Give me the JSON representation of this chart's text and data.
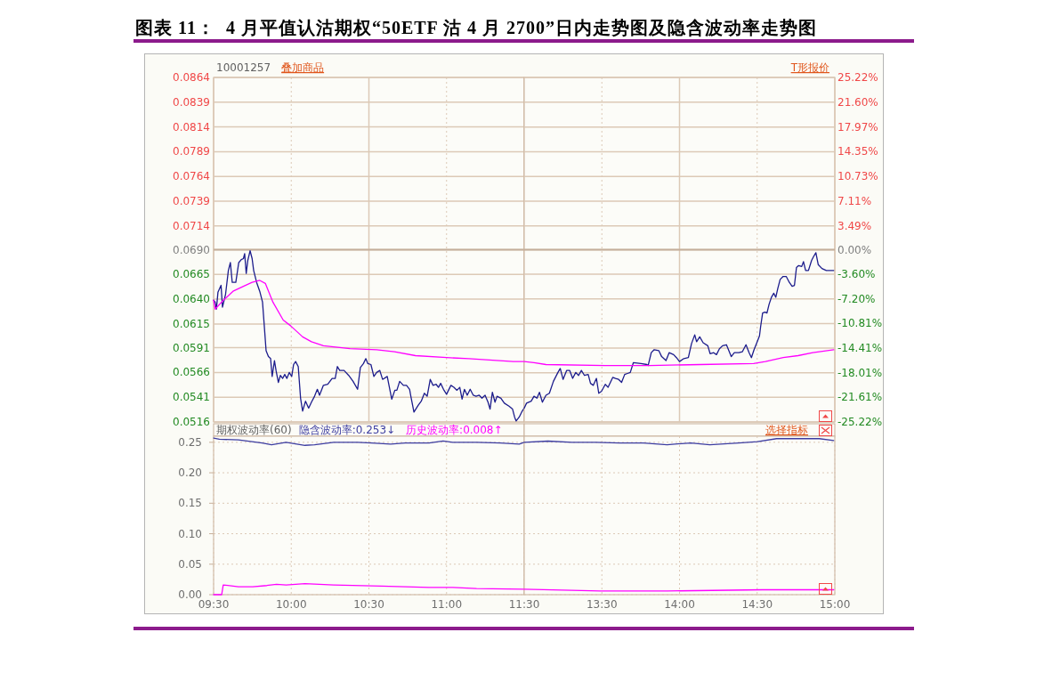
{
  "chart_data": [
    {
      "type": "line",
      "title": "图表 11：  4 月平值认沽期权“50ETF 沽 4 月 2700”日内走势图及隐含波动率走势图",
      "annotations": [
        "10001257",
        "叠加商品"
      ],
      "xlim": [
        9.5,
        11.5
      ],
      "xticks": [
        9.5,
        10,
        10.5,
        11,
        11.5
      ],
      "ylim": [
        0.0516,
        0.0864
      ],
      "yticks": [
        {
          "value": 0.0864,
          "label": "0.0864"
        },
        {
          "value": 0.0839,
          "label": "0.0839"
        },
        {
          "value": 0.0814,
          "label": "0.0814"
        },
        {
          "value": 0.0789,
          "label": "0.0789"
        },
        {
          "value": 0.0764,
          "label": "0.0764"
        },
        {
          "value": 0.0739,
          "label": "0.0739"
        },
        {
          "value": 0.0714,
          "label": "0.0714"
        },
        {
          "value": 0.069,
          "label": "0.0690"
        },
        {
          "value": 0.0665,
          "label": "0.0665"
        },
        {
          "value": 0.064,
          "label": "0.0640"
        },
        {
          "value": 0.0615,
          "label": "0.0615"
        },
        {
          "value": 0.0591,
          "label": "0.0591"
        },
        {
          "value": 0.0566,
          "label": "0.0566"
        },
        {
          "value": 0.0541,
          "label": "0.0541"
        },
        {
          "value": 0.0516,
          "label": "0.0516"
        }
      ],
      "tick_labels": "y",
      "grid": true,
      "ref_lines": [
        {
          "axis": "y",
          "value": 0.069,
          "color": "#c4ae9a"
        }
      ],
      "series": [
        {
          "color": "#1c1c8c",
          "x": [
            9.5,
            9.51,
            9.518,
            9.528,
            9.548,
            9.557,
            9.577,
            9.595,
            9.608,
            9.62,
            9.643,
            9.662,
            9.678,
            9.692,
            9.7,
            9.71,
            9.72,
            9.735,
            9.748,
            9.758,
            9.777,
            9.797,
            9.815,
            9.825,
            9.838,
            9.853,
            9.867,
            9.877,
            9.892,
            9.902,
            9.917,
            9.93,
            9.945,
            9.958,
            9.972,
            9.987,
            10.003,
            10.015,
            10.028,
            10.045,
            10.06,
            10.073,
            10.092,
            10.112,
            10.13,
            10.15,
            10.168,
            10.182,
            10.207,
            10.235,
            10.263,
            10.283,
            10.297,
            10.312,
            10.34,
            10.37,
            10.398,
            10.427,
            10.445,
            10.465,
            10.48,
            10.493,
            10.513,
            10.532,
            10.55,
            10.57,
            10.588,
            10.618,
            10.647,
            10.667,
            10.68,
            10.698,
            10.722,
            10.742,
            10.762,
            10.77,
            10.79,
            10.818,
            10.837,
            10.857,
            10.875,
            10.895,
            10.913,
            10.933,
            10.948,
            10.962,
            10.98,
            11.0,
            11.028,
            11.047,
            11.067,
            11.085,
            11.1,
            11.115,
            11.133,
            11.152,
            11.172,
            11.19,
            11.21,
            11.228,
            11.248,
            11.267,
            11.28,
            11.295,
            11.312,
            11.325,
            11.35,
            11.372,
            11.402,
            11.425,
            11.438,
            11.448,
            11.468,
            11.487,
            11.5
          ],
          "values": [
            0.0639,
            0.0637,
            0.063,
            0.0647,
            0.0654,
            0.0632,
            0.0645,
            0.0669,
            0.0677,
            0.0657,
            0.0657,
            0.0677,
            0.068,
            0.0681,
            0.0686,
            0.0666,
            0.0679,
            0.0689,
            0.0681,
            0.0669,
            0.0657,
            0.0648,
            0.0637,
            0.0616,
            0.0588,
            0.0582,
            0.058,
            0.0562,
            0.0578,
            0.0568,
            0.0556,
            0.0563,
            0.056,
            0.0564,
            0.056,
            0.0566,
            0.0562,
            0.0574,
            0.0577,
            0.0572,
            0.054,
            0.0527,
            0.0537,
            0.053,
            0.0536,
            0.0542,
            0.0549,
            0.0543,
            0.0553,
            0.0554,
            0.056,
            0.056,
            0.0572,
            0.0568,
            0.0568,
            0.0563,
            0.0557,
            0.0549,
            0.0571,
            0.0575,
            0.058,
            0.0575,
            0.0574,
            0.0562,
            0.0566,
            0.0568,
            0.0559,
            0.0562,
            0.0539,
            0.0548,
            0.0548,
            0.0557,
            0.0553,
            0.0553,
            0.0549,
            0.0542,
            0.0526,
            0.0533,
            0.0537,
            0.0545,
            0.0542,
            0.0559,
            0.0553,
            0.0554,
            0.0551,
            0.0555,
            0.0549,
            0.0544,
            0.0553,
            0.0551,
            0.0548,
            0.0551,
            0.0539,
            0.0549,
            0.0543,
            0.0549,
            0.0543,
            0.0542,
            0.0543,
            0.054,
            0.0543,
            0.0536,
            0.0529,
            0.0546,
            0.0536,
            0.0542,
            0.054,
            0.0535,
            0.0532,
            0.0529,
            0.0521,
            0.0517,
            0.0521,
            0.0527,
            0.053
          ]
        },
        {
          "color": "#ff00ff",
          "x": [
            9.5,
            9.51,
            9.557,
            9.625,
            9.692,
            9.748,
            9.797,
            9.833,
            9.882,
            9.948,
            9.997,
            10.073,
            10.13,
            10.207,
            10.378,
            10.55,
            10.665,
            10.8,
            11.0,
            11.143,
            11.43,
            11.5
          ],
          "values": [
            0.0639,
            0.063,
            0.0638,
            0.0648,
            0.0653,
            0.0657,
            0.0659,
            0.0656,
            0.0637,
            0.0619,
            0.0613,
            0.0602,
            0.0597,
            0.0593,
            0.059,
            0.0589,
            0.0587,
            0.0583,
            0.0581,
            0.058,
            0.0577,
            0.0577
          ]
        }
      ]
    },
    {
      "type": "line",
      "annotations": [
        "T形报价"
      ],
      "xlim": [
        13,
        15
      ],
      "xticks": [
        13.5,
        14,
        14.5,
        15
      ],
      "ylim": [
        0.0516,
        0.0864
      ],
      "y2lim": [
        -25.22,
        25.22
      ],
      "y2ticks": [
        {
          "value": 25.22,
          "label": "25.22%"
        },
        {
          "value": 21.6,
          "label": "21.60%"
        },
        {
          "value": 17.97,
          "label": "17.97%"
        },
        {
          "value": 14.35,
          "label": "14.35%"
        },
        {
          "value": 10.73,
          "label": "10.73%"
        },
        {
          "value": 7.11,
          "label": "7.11%"
        },
        {
          "value": 3.49,
          "label": "3.49%"
        },
        {
          "value": 0,
          "label": "0.00%"
        },
        {
          "value": -3.6,
          "label": "-3.60%"
        },
        {
          "value": -7.2,
          "label": "-7.20%"
        },
        {
          "value": -10.81,
          "label": "-10.81%"
        },
        {
          "value": -14.41,
          "label": "-14.41%"
        },
        {
          "value": -18.01,
          "label": "-18.01%"
        },
        {
          "value": -21.61,
          "label": "-21.61%"
        },
        {
          "value": -25.22,
          "label": "-25.22%"
        }
      ],
      "tick_labels": "y",
      "grid": true,
      "ref_lines": [
        {
          "axis": "y",
          "value": 0.069,
          "color": "#c4ae9a"
        }
      ],
      "series": [
        {
          "color": "#1c1c8c",
          "x": [
            13.0,
            13.015,
            13.045,
            13.063,
            13.082,
            13.098,
            13.117,
            13.14,
            13.162,
            13.188,
            13.217,
            13.232,
            13.25,
            13.273,
            13.293,
            13.312,
            13.332,
            13.35,
            13.368,
            13.388,
            13.412,
            13.427,
            13.445,
            13.465,
            13.48,
            13.498,
            13.522,
            13.54,
            13.57,
            13.588,
            13.608,
            13.627,
            13.647,
            13.665,
            13.683,
            13.703,
            13.752,
            13.79,
            13.798,
            13.818,
            13.837,
            13.867,
            13.885,
            13.913,
            13.933,
            13.962,
            13.98,
            14.0,
            14.028,
            14.057,
            14.077,
            14.098,
            14.11,
            14.13,
            14.152,
            14.182,
            14.197,
            14.22,
            14.238,
            14.257,
            14.277,
            14.302,
            14.315,
            14.333,
            14.353,
            14.382,
            14.405,
            14.428,
            14.448,
            14.463,
            14.48,
            14.5,
            14.515,
            14.522,
            14.535,
            14.55,
            14.563,
            14.577,
            14.592,
            14.607,
            14.62,
            14.633,
            14.648,
            14.667,
            14.687,
            14.707,
            14.725,
            14.74,
            14.753,
            14.767,
            14.787,
            14.798,
            14.812,
            14.83,
            14.85,
            14.863,
            14.878,
            14.893,
            14.917,
            14.945,
            14.993
          ],
          "values": [
            0.053,
            0.0535,
            0.0537,
            0.0542,
            0.054,
            0.0546,
            0.0536,
            0.0543,
            0.0545,
            0.0557,
            0.0566,
            0.057,
            0.0559,
            0.0568,
            0.0568,
            0.056,
            0.0566,
            0.0563,
            0.0568,
            0.0563,
            0.0564,
            0.0555,
            0.0553,
            0.056,
            0.0545,
            0.0547,
            0.0554,
            0.0551,
            0.0561,
            0.056,
            0.0559,
            0.0556,
            0.0564,
            0.0565,
            0.0566,
            0.0576,
            0.0575,
            0.0574,
            0.0573,
            0.0586,
            0.0589,
            0.0588,
            0.0582,
            0.0578,
            0.0586,
            0.0584,
            0.0581,
            0.0577,
            0.058,
            0.0581,
            0.0595,
            0.0604,
            0.0597,
            0.0602,
            0.0596,
            0.0593,
            0.0585,
            0.0586,
            0.0584,
            0.059,
            0.0593,
            0.0594,
            0.0589,
            0.0582,
            0.0586,
            0.0586,
            0.0587,
            0.0594,
            0.0586,
            0.0581,
            0.0589,
            0.0597,
            0.0603,
            0.0612,
            0.0626,
            0.0627,
            0.0626,
            0.0635,
            0.0642,
            0.0646,
            0.0642,
            0.0651,
            0.066,
            0.0663,
            0.0663,
            0.0657,
            0.0653,
            0.0654,
            0.0672,
            0.0674,
            0.0673,
            0.0678,
            0.0669,
            0.0669,
            0.0679,
            0.0683,
            0.0687,
            0.0675,
            0.0671,
            0.0669,
            0.0669
          ]
        },
        {
          "color": "#ff00ff",
          "x": [
            13.0,
            13.063,
            13.14,
            13.522,
            13.808,
            14.133,
            14.477,
            14.553,
            14.668,
            14.763,
            14.858,
            14.993
          ],
          "values": [
            0.0577,
            0.0576,
            0.0574,
            0.0573,
            0.0573,
            0.0574,
            0.0575,
            0.0577,
            0.0581,
            0.0583,
            0.0586,
            0.0589
          ]
        }
      ]
    },
    {
      "type": "line",
      "annotations": [
        "期权波动率(60)"
      ],
      "xlim": [
        9.5,
        11.5
      ],
      "xticks": [
        {
          "value": 9.5,
          "label": "09:30"
        },
        {
          "value": 10,
          "label": "10:00"
        },
        {
          "value": 10.5,
          "label": "10:30"
        },
        {
          "value": 11,
          "label": "11:00"
        },
        {
          "value": 11.5,
          "label": "11:30"
        }
      ],
      "ylim": [
        0,
        0.26
      ],
      "yticks": [
        {
          "value": 0,
          "label": "0.00"
        },
        {
          "value": 0.05,
          "label": "0.05"
        },
        {
          "value": 0.1,
          "label": "0.10"
        },
        {
          "value": 0.15,
          "label": "0.15"
        },
        {
          "value": 0.2,
          "label": "0.20"
        },
        {
          "value": 0.25,
          "label": "0.25"
        }
      ],
      "grid": true,
      "series": [
        {
          "name": "隐含波动率:0.253↓",
          "color": "#3c3ca0",
          "x": [
            9.5,
            9.537,
            9.66,
            9.813,
            9.873,
            9.967,
            10.088,
            10.15,
            10.273,
            10.427,
            10.518,
            10.64,
            10.733,
            10.887,
            10.978,
            11.04,
            11.193,
            11.347,
            11.468,
            11.5
          ],
          "values": [
            0.257,
            0.255,
            0.254,
            0.249,
            0.246,
            0.25,
            0.245,
            0.246,
            0.25,
            0.25,
            0.249,
            0.247,
            0.249,
            0.249,
            0.252,
            0.25,
            0.25,
            0.249,
            0.247,
            0.25
          ]
        },
        {
          "name": "历史波动率:0.008↑",
          "color": "#ff00ff",
          "x": [
            9.5,
            9.552,
            9.562,
            9.66,
            9.752,
            9.843,
            9.905,
            9.967,
            10.088,
            10.273,
            10.58,
            10.887,
            11.04,
            11.193,
            11.5
          ],
          "values": [
            0,
            0,
            0.016,
            0.013,
            0.013,
            0.015,
            0.017,
            0.016,
            0.018,
            0.016,
            0.014,
            0.012,
            0.012,
            0.01,
            0.009
          ]
        }
      ]
    },
    {
      "type": "line",
      "annotations": [
        "选择指标"
      ],
      "xlim": [
        13,
        15
      ],
      "xticks": [
        {
          "value": 13.5,
          "label": "13:30"
        },
        {
          "value": 14,
          "label": "14:00"
        },
        {
          "value": 14.5,
          "label": "14:30"
        },
        {
          "value": 15,
          "label": "15:00"
        }
      ],
      "ylim": [
        0,
        0.26
      ],
      "yticks": [
        0,
        0.05,
        0.1,
        0.15,
        0.2,
        0.25
      ],
      "tick_labels": "x",
      "grid": true,
      "series": [
        {
          "color": "#3c3ca0",
          "x": [
            13.0,
            13.153,
            13.307,
            13.46,
            13.613,
            13.767,
            13.92,
            14.073,
            14.195,
            14.38,
            14.502,
            14.625,
            14.778,
            14.9,
            14.993
          ],
          "values": [
            0.25,
            0.252,
            0.25,
            0.25,
            0.249,
            0.249,
            0.246,
            0.249,
            0.246,
            0.249,
            0.251,
            0.256,
            0.256,
            0.256,
            0.253
          ]
        },
        {
          "color": "#ff00ff",
          "x": [
            13.0,
            13.307,
            13.49,
            13.92,
            14.533,
            14.993
          ],
          "values": [
            0.009,
            0.007,
            0.006,
            0.006,
            0.008,
            0.008
          ]
        }
      ]
    }
  ]
}
